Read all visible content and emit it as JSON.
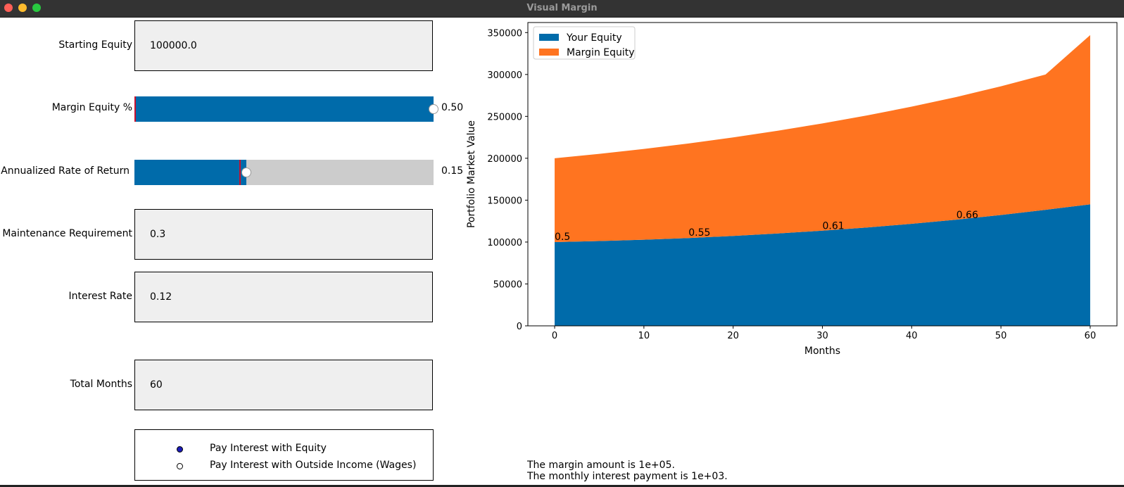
{
  "window": {
    "title": "Visual Margin"
  },
  "controls": {
    "starting_equity": {
      "label": "Starting Equity",
      "value": "100000.0"
    },
    "margin_equity": {
      "label": "Margin Equity %",
      "value": 0.5,
      "value_text": "0.50",
      "min": 0.0,
      "max": 0.5,
      "initial": 0.0
    },
    "annual_return": {
      "label": "Annualized Rate of Return",
      "value": 0.15,
      "value_text": "0.15",
      "min": 0.0,
      "max": 0.4,
      "initial": 0.14
    },
    "maintenance": {
      "label": "Maintenance Requirement",
      "value": "0.3"
    },
    "interest_rate": {
      "label": "Interest Rate",
      "value": "0.12"
    },
    "total_months": {
      "label": "Total Months",
      "value": "60"
    },
    "interest_payment": {
      "options": [
        {
          "label": "Pay Interest with Equity",
          "selected": true
        },
        {
          "label": "Pay Interest with Outside Income (Wages)",
          "selected": false
        }
      ]
    }
  },
  "chart_data": {
    "type": "area",
    "stacked": true,
    "xlabel": "Months",
    "ylabel": "Portfolio Market Value",
    "xlim": [
      -3,
      63
    ],
    "ylim": [
      0,
      362000
    ],
    "xticks": [
      0,
      10,
      20,
      30,
      40,
      50,
      60
    ],
    "yticks": [
      0,
      50000,
      100000,
      150000,
      200000,
      250000,
      300000,
      350000
    ],
    "legend": "top-left",
    "x": [
      0,
      5,
      10,
      15,
      20,
      25,
      30,
      35,
      40,
      45,
      50,
      55,
      60
    ],
    "series": [
      {
        "name": "Your Equity",
        "color": "#006baa",
        "values": [
          100000,
          101200,
          102800,
          104800,
          107300,
          110200,
          113600,
          117400,
          121800,
          126700,
          132300,
          138500,
          145000
        ]
      },
      {
        "name": "Margin Equity",
        "color": "#ff7420",
        "values": [
          100000,
          104000,
          108300,
          112800,
          117600,
          122700,
          128000,
          133700,
          139800,
          146400,
          153600,
          161500,
          202000
        ]
      }
    ],
    "annotations": [
      {
        "x": 0,
        "y": 100000,
        "text": "0.5"
      },
      {
        "x": 15,
        "y": 105000,
        "text": "0.55"
      },
      {
        "x": 30,
        "y": 113000,
        "text": "0.61"
      },
      {
        "x": 45,
        "y": 126000,
        "text": "0.66"
      }
    ]
  },
  "notes": {
    "margin_amount": "The margin amount is 1e+05.",
    "interest_payment": "The monthly interest payment is 1e+03."
  }
}
